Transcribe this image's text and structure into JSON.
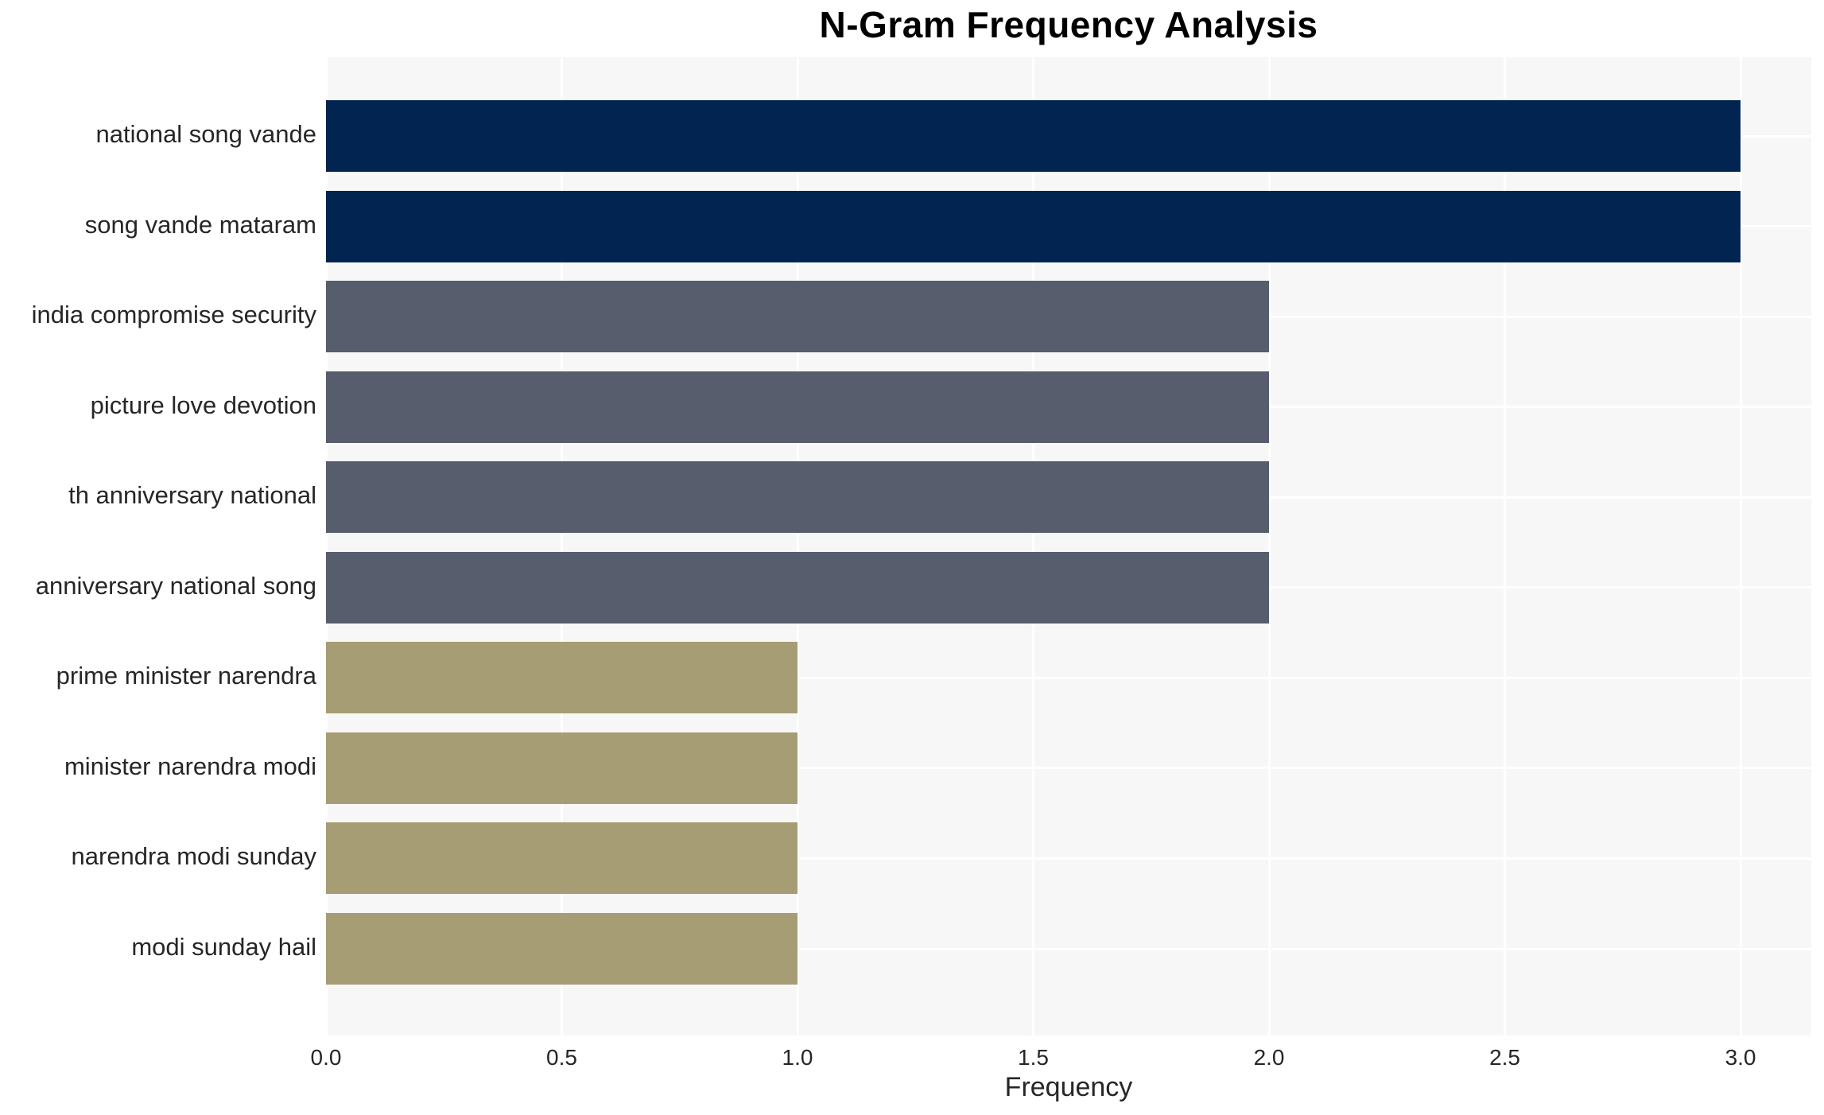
{
  "chart_data": {
    "type": "bar",
    "orientation": "horizontal",
    "title": "N-Gram Frequency Analysis",
    "xlabel": "Frequency",
    "ylabel": "",
    "categories": [
      "national song vande",
      "song vande mataram",
      "india compromise security",
      "picture love devotion",
      "th anniversary national",
      "anniversary national song",
      "prime minister narendra",
      "minister narendra modi",
      "narendra modi sunday",
      "modi sunday hail"
    ],
    "values": [
      3,
      3,
      2,
      2,
      2,
      2,
      1,
      1,
      1,
      1
    ],
    "bar_colors": [
      "#012450",
      "#012450",
      "#575d6c",
      "#575d6c",
      "#575d6c",
      "#575d6c",
      "#a69d74",
      "#a69d74",
      "#a69d74",
      "#a69d74"
    ],
    "xlim": [
      0,
      3.15
    ],
    "xticks": [
      {
        "value": 0.0,
        "label": "0.0"
      },
      {
        "value": 0.5,
        "label": "0.5"
      },
      {
        "value": 1.0,
        "label": "1.0"
      },
      {
        "value": 1.5,
        "label": "1.5"
      },
      {
        "value": 2.0,
        "label": "2.0"
      },
      {
        "value": 2.5,
        "label": "2.5"
      },
      {
        "value": 3.0,
        "label": "3.0"
      }
    ],
    "grid": "white gridlines at x ticks and at each category center, behind bars",
    "legend": "none",
    "colors": {
      "plot_background": "#f7f7f8",
      "figure_background": "#ffffff",
      "gridline": "#ffffff",
      "text": "#262626",
      "title_text": "#000000"
    }
  }
}
